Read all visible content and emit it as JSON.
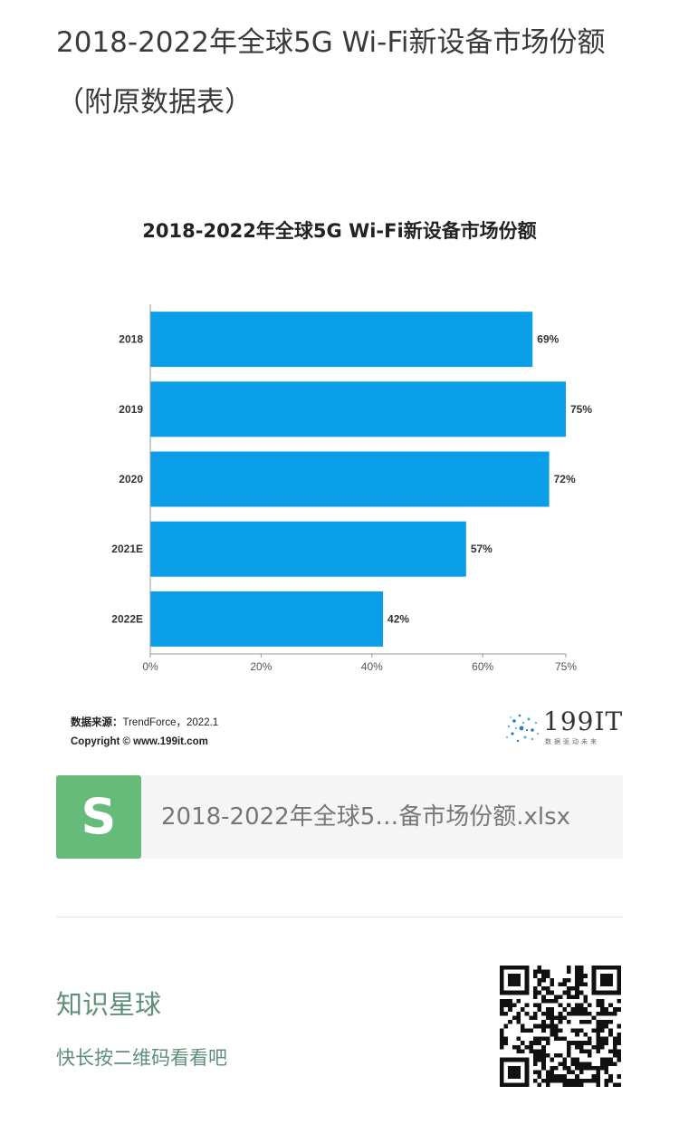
{
  "header": {
    "title": "2018-2022年全球5G Wi-Fi新设备市场份额（附原数据表）"
  },
  "chart_data": {
    "type": "bar",
    "orientation": "horizontal",
    "title": "2018-2022年全球5G Wi-Fi新设备市场份额",
    "categories": [
      "2018",
      "2019",
      "2020",
      "2021E",
      "2022E"
    ],
    "values": [
      69,
      75,
      72,
      57,
      42
    ],
    "value_labels": [
      "69%",
      "75%",
      "72%",
      "57%",
      "42%"
    ],
    "xlim": [
      0,
      75
    ],
    "x_ticks": [
      0,
      20,
      40,
      60,
      75
    ],
    "x_tick_labels": [
      "0%",
      "20%",
      "40%",
      "60%",
      "75%"
    ],
    "bar_color": "#0a9ee8",
    "grid": false
  },
  "chart_footer": {
    "source_label": "数据来源：",
    "source_text": "TrendForce，2022.1",
    "copyright_label": "Copyright ©",
    "copyright_text": "www.199it.com"
  },
  "logo": {
    "text": "199IT",
    "subtitle": "数据驱动未来"
  },
  "attachment": {
    "icon": "s-file-icon",
    "icon_glyph": "S",
    "icon_color": "#66bb7a",
    "file_name": "2018-2022年全球5…备市场份额.xlsx"
  },
  "planet": {
    "title": "知识星球",
    "subtitle": "快长按二维码看看吧",
    "accent": "#5e8f78"
  }
}
